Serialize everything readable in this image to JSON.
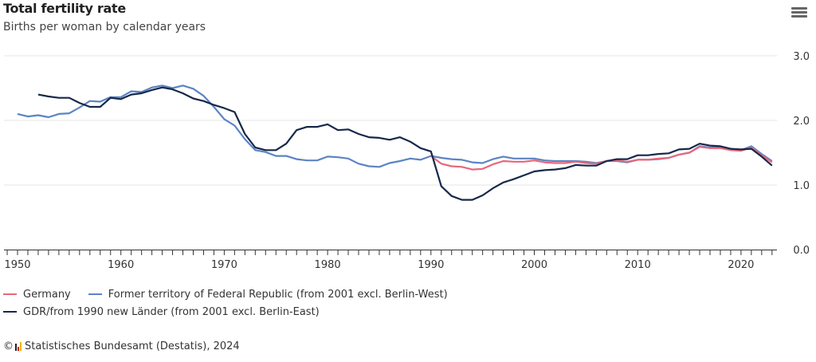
{
  "header": {
    "title": "Total fertility rate",
    "subtitle": "Births per woman by calendar years",
    "menu_icon": "hamburger-menu-icon"
  },
  "footer": {
    "copyright_symbol": "©",
    "credit": "Statistisches Bundesamt (Destatis), 2024",
    "logo_icon": "destatis-logo-icon"
  },
  "chart_data": {
    "type": "line",
    "title": "Total fertility rate",
    "subtitle": "Births per woman by calendar years",
    "xlabel": "",
    "ylabel": "",
    "xlim": [
      1949,
      2023
    ],
    "ylim": [
      0,
      3
    ],
    "x_ticks": [
      1950,
      1960,
      1970,
      1980,
      1990,
      2000,
      2010,
      2020
    ],
    "y_ticks": [
      "0.0",
      "1.0",
      "2.0",
      "3.0"
    ],
    "y_axis_side": "right",
    "grid": true,
    "legend": "bottom",
    "series": [
      {
        "name": "Germany",
        "color": "#e8677b",
        "start": 1990,
        "values": [
          1.45,
          1.33,
          1.29,
          1.28,
          1.24,
          1.25,
          1.32,
          1.37,
          1.36,
          1.36,
          1.38,
          1.35,
          1.34,
          1.34,
          1.36,
          1.34,
          1.33,
          1.37,
          1.38,
          1.36,
          1.39,
          1.39,
          1.41,
          1.42,
          1.47,
          1.5,
          1.59,
          1.57,
          1.57,
          1.54,
          1.53,
          1.58,
          1.46,
          1.35
        ]
      },
      {
        "name": "Former territory of Federal Republic (from 2001 excl. Berlin-West)",
        "color": "#5b84c4",
        "start": 1950,
        "values": [
          2.1,
          2.06,
          2.08,
          2.05,
          2.1,
          2.11,
          2.2,
          2.3,
          2.29,
          2.36,
          2.36,
          2.45,
          2.44,
          2.51,
          2.54,
          2.5,
          2.54,
          2.49,
          2.38,
          2.21,
          2.02,
          1.92,
          1.71,
          1.54,
          1.51,
          1.45,
          1.45,
          1.4,
          1.38,
          1.38,
          1.44,
          1.43,
          1.41,
          1.33,
          1.29,
          1.28,
          1.34,
          1.37,
          1.41,
          1.39,
          1.45,
          1.42,
          1.4,
          1.39,
          1.35,
          1.34,
          1.4,
          1.44,
          1.41,
          1.41,
          1.41,
          1.38,
          1.37,
          1.37,
          1.37,
          1.36,
          1.34,
          1.37,
          1.37,
          1.35,
          1.39,
          1.39,
          1.4,
          1.42,
          1.47,
          1.5,
          1.6,
          1.58,
          1.58,
          1.56,
          1.54,
          1.6,
          1.48,
          1.37
        ]
      },
      {
        "name": "GDR/from 1990 new Länder (from 2001 excl. Berlin-East)",
        "color": "#16284a",
        "start": 1952,
        "values": [
          2.4,
          2.37,
          2.35,
          2.35,
          2.27,
          2.21,
          2.21,
          2.35,
          2.33,
          2.4,
          2.42,
          2.47,
          2.51,
          2.48,
          2.42,
          2.34,
          2.3,
          2.24,
          2.19,
          2.13,
          1.79,
          1.58,
          1.54,
          1.54,
          1.64,
          1.85,
          1.9,
          1.9,
          1.94,
          1.85,
          1.86,
          1.79,
          1.74,
          1.73,
          1.7,
          1.74,
          1.67,
          1.57,
          1.52,
          0.98,
          0.83,
          0.77,
          0.77,
          0.84,
          0.95,
          1.04,
          1.09,
          1.15,
          1.21,
          1.23,
          1.24,
          1.26,
          1.31,
          1.3,
          1.3,
          1.37,
          1.4,
          1.4,
          1.46,
          1.46,
          1.48,
          1.49,
          1.55,
          1.56,
          1.64,
          1.61,
          1.6,
          1.56,
          1.55,
          1.56,
          1.44,
          1.3
        ]
      }
    ]
  }
}
